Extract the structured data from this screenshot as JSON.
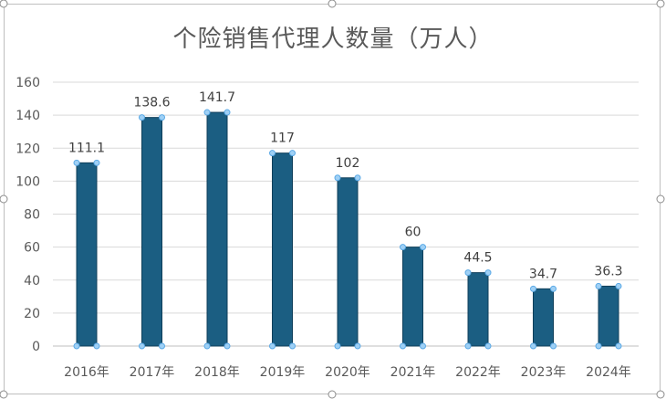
{
  "chart_data": {
    "type": "bar",
    "title": "个险销售代理人数量（万人）",
    "categories": [
      "2016年",
      "2017年",
      "2018年",
      "2019年",
      "2020年",
      "2021年",
      "2022年",
      "2023年",
      "2024年"
    ],
    "values": [
      111.1,
      138.6,
      141.7,
      117,
      102,
      60,
      44.5,
      34.7,
      36.3
    ],
    "data_labels": [
      "111.1",
      "138.6",
      "141.7",
      "117",
      "102",
      "60",
      "44.5",
      "34.7",
      "36.3"
    ],
    "y_ticks": [
      "0",
      "20",
      "40",
      "60",
      "80",
      "100",
      "120",
      "140",
      "160"
    ],
    "ylim": [
      0,
      160
    ],
    "grid": true,
    "bar_color": "#1b5e82",
    "selection_handle_color": "#5aa9e6"
  }
}
